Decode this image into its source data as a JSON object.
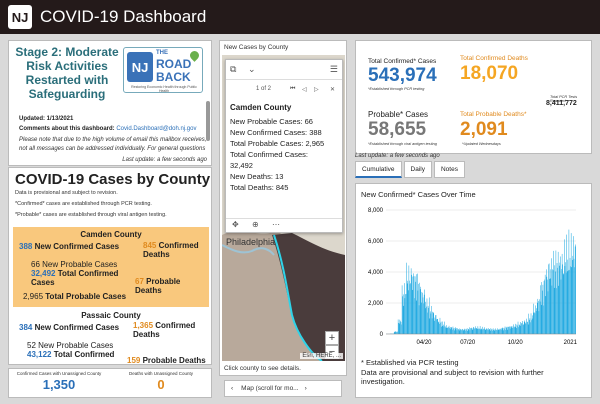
{
  "header": {
    "logo": "NJ",
    "title": "COVID-19 Dashboard"
  },
  "stage": {
    "title": "Stage 2: Moderate Risk Activities Restarted with Safeguarding",
    "logo": {
      "nj": "NJ",
      "the": "THE",
      "road": "ROAD",
      "back": "BACK",
      "tagline": "Restoring Economic Health through Public Health"
    },
    "updated": "Updated: 1/13/2021",
    "comments_label": "Comments about this dashboard:",
    "comments_email": "Covid.Dashboard@doh.nj.gov",
    "note": "Please note that due to the high volume of email this mailbox receives, not all messages can be addressed individually. For general questions",
    "last_update": "Last update: a few seconds ago"
  },
  "cases": {
    "title": "COVID-19 Cases by County",
    "sub1": "Data is provisional and subject to revision.",
    "sub2": "*Confirmed* cases are established through PCR testing.",
    "sub3": "*Probable* cases are established through viral antigen testing.",
    "camden": {
      "name": "Camden County",
      "new_confirmed_num": "388",
      "new_confirmed_lab": "New Confirmed Cases",
      "new_probable_num": "66",
      "new_probable_lab": "New Probable Cases",
      "total_confirmed_num": "32,492",
      "total_confirmed_lab": "Total Confirmed Cases",
      "total_probable_num": "2,965",
      "total_probable_lab": "Total Probable Cases",
      "conf_deaths_num": "845",
      "conf_deaths_lab": "Confirmed Deaths",
      "prob_deaths_num": "67",
      "prob_deaths_lab": "Probable Deaths"
    },
    "passaic": {
      "name": "Passaic County",
      "new_confirmed_num": "384",
      "new_confirmed_lab": "New Confirmed Cases",
      "new_probable_num": "52",
      "new_probable_lab": "New Probable Cases",
      "total_confirmed_num": "43,122",
      "total_confirmed_lab": "Total Confirmed",
      "conf_deaths_num": "1,365",
      "conf_deaths_lab": "Confirmed Deaths",
      "prob_deaths_num": "159",
      "prob_deaths_lab": "Probable Deaths"
    }
  },
  "unassigned": {
    "cases_label": "Confirmed Cases with Unassigned County",
    "cases_value": "1,350",
    "deaths_label": "Deaths with Unassigned County",
    "deaths_value": "0"
  },
  "map": {
    "title": "New Cases by County",
    "footer": "Click county to see details.",
    "nav_label": "Map (scroll for mo...",
    "city": "Philadelphia",
    "attribution": "Esri, HERE, ...",
    "popup": {
      "pager": "1 of 2",
      "heading": "Camden County",
      "lines": [
        "New Probable Cases: 66",
        "New Confirmed Cases: 388",
        "Total Probable Cases: 2,965",
        "Total Confirmed Cases:",
        "32,492",
        "New Deaths: 13",
        "Total Deaths: 845"
      ]
    }
  },
  "totals": {
    "confirmed_label": "Total Confirmed* Cases",
    "confirmed_value": "543,974",
    "confirmed_sub": "*Established through PCR testing",
    "deaths_label": "Total Confirmed Deaths",
    "deaths_value": "18,070",
    "tests_label": "Total PCR Tests Reported",
    "tests_value": "8,411,772",
    "probable_label": "Probable* Cases",
    "probable_value": "58,655",
    "probable_sub": "*Established through viral antigen testing",
    "prob_deaths_label": "Total Probable Deaths*",
    "prob_deaths_value": "2,091",
    "prob_deaths_sub": "*Updated Wednesdays",
    "last_update": "Last update: a few seconds ago"
  },
  "tabs": [
    "Cumulative",
    "Daily",
    "Notes"
  ],
  "colors": {
    "header": "#241a1a",
    "blue": "#2a6fb8",
    "orange": "#e08a1e",
    "teal": "#2a6e7a",
    "camden": "#f9c87d",
    "bars": "#1ba7e0"
  },
  "chart_data": {
    "type": "bar",
    "title": "New Confirmed* Cases Over Time",
    "ylim": [
      0,
      8000
    ],
    "yticks": [
      0,
      2000,
      4000,
      6000,
      8000
    ],
    "ytick_labels": [
      "0",
      "2,000",
      "4,000",
      "6,000",
      "8,000"
    ],
    "xtick_labels": [
      "04/20",
      "07/20",
      "10/20",
      "2021"
    ],
    "weekly_avg": [
      5,
      20,
      150,
      800,
      2500,
      3500,
      3600,
      3300,
      2800,
      2400,
      1800,
      1400,
      1100,
      800,
      600,
      450,
      400,
      350,
      300,
      280,
      300,
      350,
      400,
      380,
      350,
      320,
      300,
      280,
      300,
      350,
      400,
      450,
      500,
      600,
      700,
      800,
      1000,
      1500,
      2000,
      2800,
      3500,
      4000,
      4200,
      4300,
      4400,
      4800,
      5000,
      5200
    ],
    "notes": [
      "* Established via PCR testing",
      "Data are provisional and subject to revision with further investigation."
    ]
  }
}
